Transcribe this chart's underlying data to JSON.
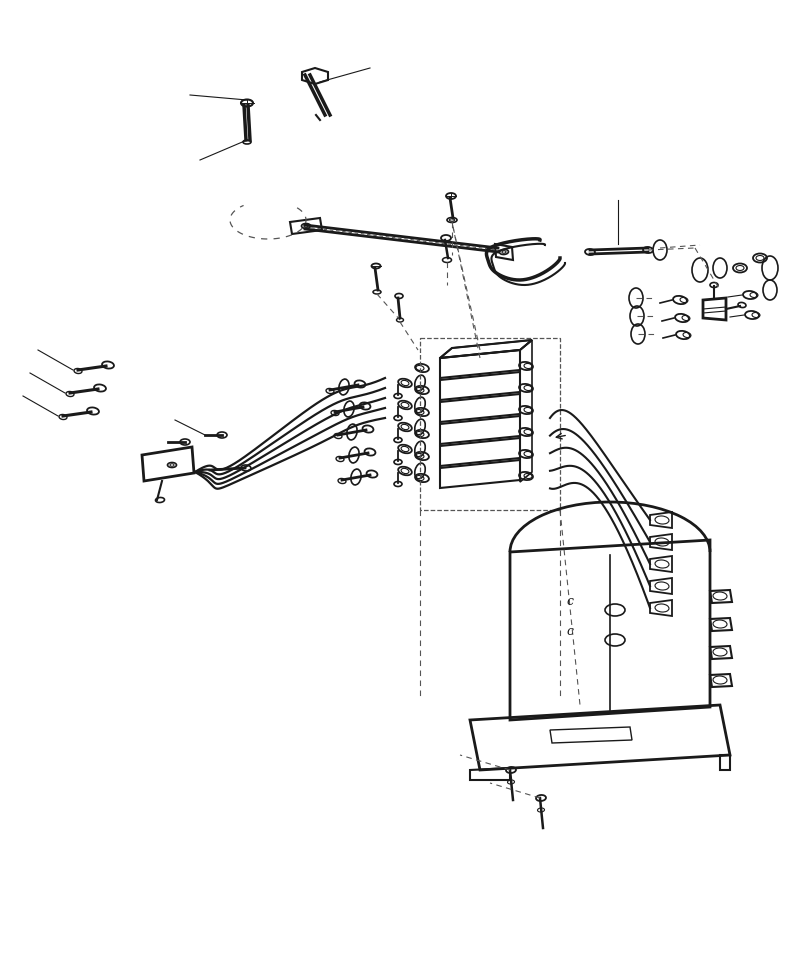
{
  "title": "",
  "bg_color": "#ffffff",
  "line_color": "#1a1a1a",
  "dashed_color": "#555555",
  "fig_width": 7.92,
  "fig_height": 9.68,
  "dpi": 100
}
